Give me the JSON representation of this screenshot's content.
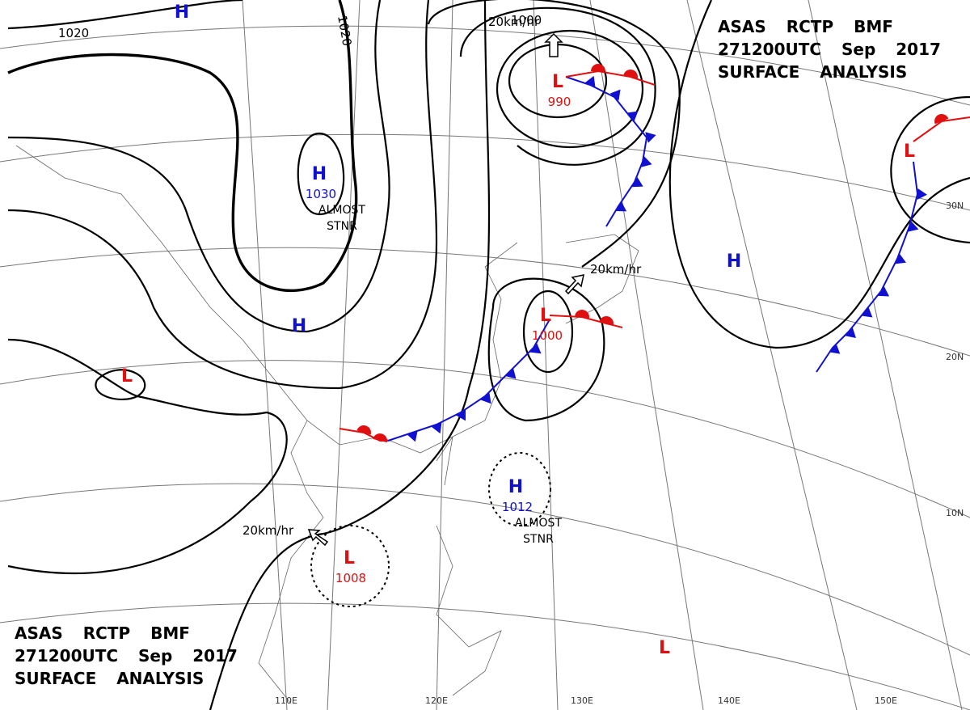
{
  "header_top": [
    "ASAS RCTP BMF",
    "271200UTC Sep 2017",
    "SURFACE ANALYSIS"
  ],
  "header_bottom": [
    "ASAS RCTP BMF",
    "271200UTC Sep 2017",
    "SURFACE ANALYSIS"
  ],
  "isobar_labels": [
    "1020",
    "1020",
    "1000"
  ],
  "movement_labels": [
    "20km/hr",
    "20km/hr",
    "20km/hr"
  ],
  "latitudes": [
    "30N",
    "20N",
    "10N"
  ],
  "longitudes": [
    "110E",
    "120E",
    "130E",
    "140E",
    "150E"
  ],
  "pressure_centers": [
    {
      "symbol": "H",
      "value": "1030",
      "note": [
        "ALMOST",
        "STNR"
      ]
    },
    {
      "symbol": "H"
    },
    {
      "symbol": "L",
      "value": "990"
    },
    {
      "symbol": "H"
    },
    {
      "symbol": "L"
    },
    {
      "symbol": "L",
      "value": "1000"
    },
    {
      "symbol": "H"
    },
    {
      "symbol": "L"
    },
    {
      "symbol": "H",
      "value": "1012",
      "note": [
        "ALMOST",
        "STNR"
      ]
    },
    {
      "symbol": "L",
      "value": "1008"
    },
    {
      "symbol": "L"
    }
  ]
}
